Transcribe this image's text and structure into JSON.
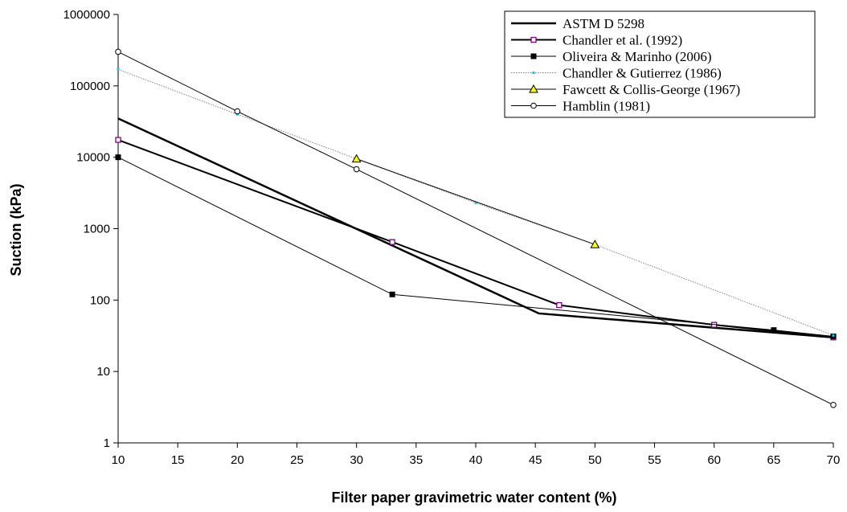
{
  "chart_data": {
    "type": "line",
    "title": "",
    "xlabel": "Filter paper gravimetric water content (%)",
    "ylabel": "Suction (kPa)",
    "xlim": [
      10,
      70
    ],
    "ylim": [
      1,
      1000000
    ],
    "yscale": "log",
    "x_ticks": [
      10,
      15,
      20,
      25,
      30,
      35,
      40,
      45,
      50,
      55,
      60,
      65,
      70
    ],
    "y_ticks": [
      1,
      10,
      100,
      1000,
      10000,
      100000,
      1000000
    ],
    "y_tick_labels": [
      "1",
      "10",
      "100",
      "1000",
      "10000",
      "100000",
      "1000000"
    ],
    "grid": false,
    "legend_position": "top-right",
    "series": [
      {
        "name": "ASTM D 5298",
        "color": "#000000",
        "marker": "none",
        "line_width": 2.5,
        "dashed": false,
        "points": [
          [
            10,
            35000
          ],
          [
            45.3,
            65
          ],
          [
            70,
            30
          ]
        ]
      },
      {
        "name": "Chandler et al. (1992)",
        "color": "#000000",
        "marker": "square-open",
        "marker_color": "#800080",
        "line_width": 2,
        "dashed": false,
        "points": [
          [
            10,
            17500
          ],
          [
            33,
            650
          ],
          [
            47,
            85
          ],
          [
            60,
            45
          ],
          [
            70,
            30
          ]
        ]
      },
      {
        "name": "Oliveira & Marinho (2006)",
        "color": "#000000",
        "marker": "square-filled",
        "marker_color": "#000000",
        "line_width": 1,
        "dashed": false,
        "points": [
          [
            10,
            10000
          ],
          [
            33,
            120
          ],
          [
            65,
            38
          ],
          [
            70,
            31
          ]
        ]
      },
      {
        "name": "Chandler & Gutierrez (1986)",
        "color": "#808080",
        "marker": "small-dot",
        "marker_color": "#00ccff",
        "line_width": 1,
        "dashed": true,
        "points": [
          [
            10,
            170000
          ],
          [
            20,
            40000
          ],
          [
            30,
            9500
          ],
          [
            40,
            2300
          ],
          [
            50,
            600
          ],
          [
            70,
            32
          ]
        ]
      },
      {
        "name": "Fawcett & Collis-George (1967)",
        "color": "#000000",
        "marker": "triangle-filled",
        "marker_color": "#ffff00",
        "line_width": 1,
        "dashed": false,
        "points": [
          [
            30,
            9500
          ],
          [
            50,
            600
          ]
        ]
      },
      {
        "name": "Hamblin (1981)",
        "color": "#000000",
        "marker": "circle-open",
        "marker_color": "#ffffff",
        "line_width": 1,
        "dashed": false,
        "points": [
          [
            10,
            300000
          ],
          [
            20,
            44000
          ],
          [
            30,
            6800
          ],
          [
            70,
            3.4
          ]
        ]
      }
    ]
  }
}
